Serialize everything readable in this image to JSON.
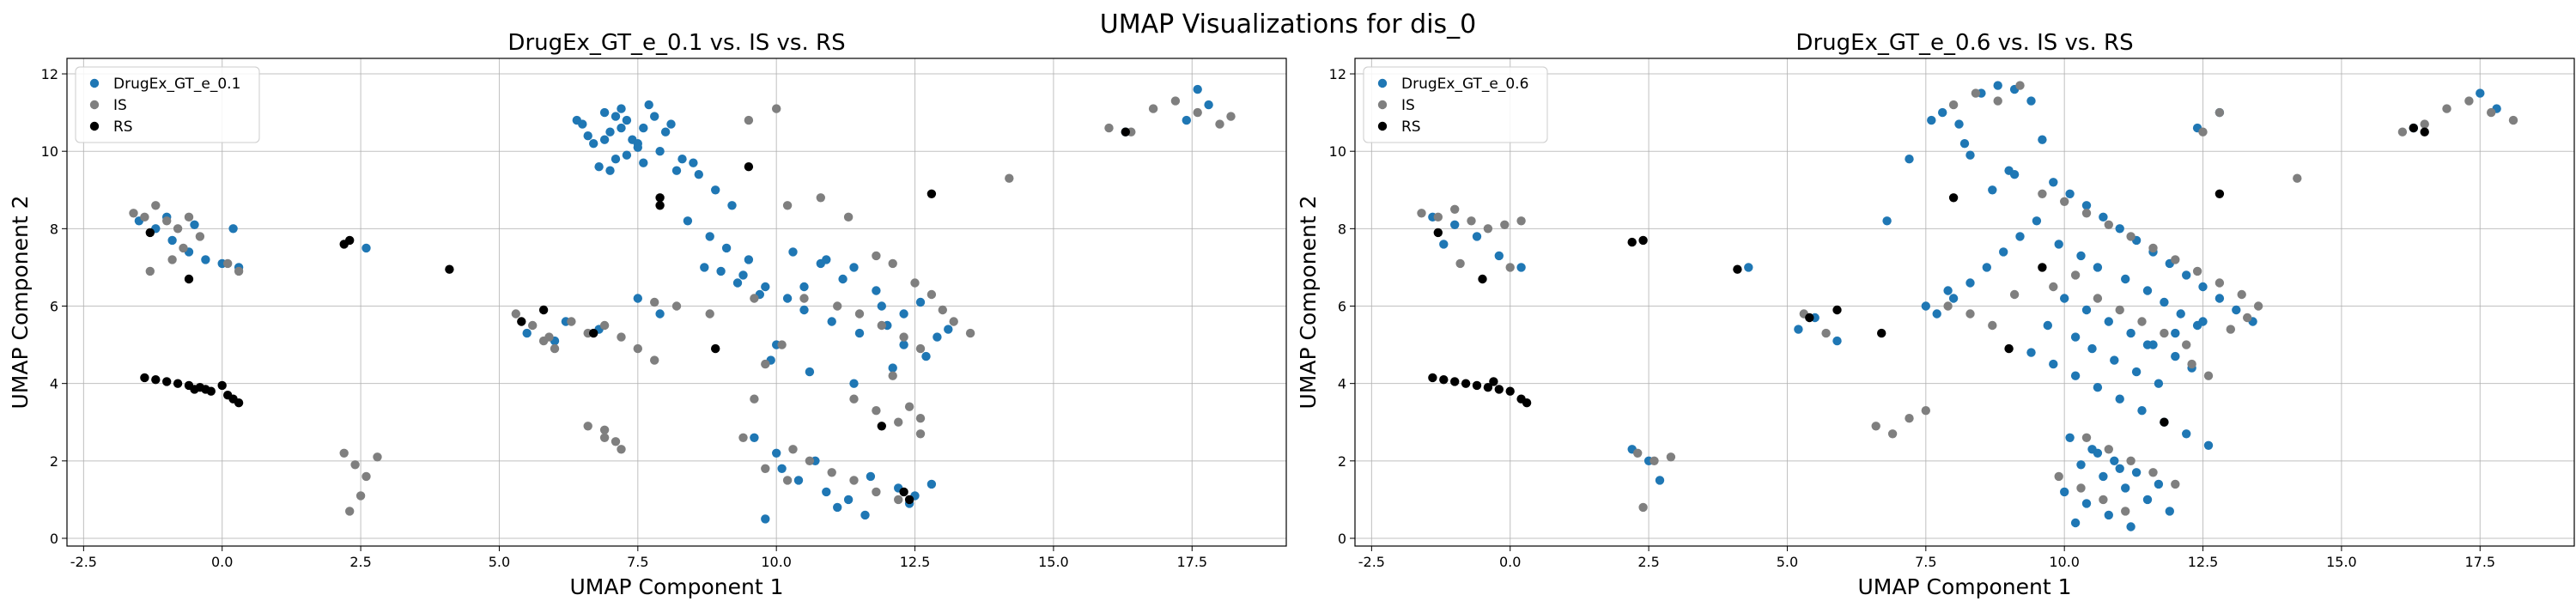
{
  "figure": {
    "suptitle": "UMAP Visualizations for dis_0"
  },
  "chart_data": [
    {
      "type": "scatter",
      "title": "DrugEx_GT_e_0.1 vs. IS vs. RS",
      "xlabel": "UMAP Component 1",
      "ylabel": "UMAP Component 2",
      "xlim": [
        -2.8,
        19.2
      ],
      "ylim": [
        -0.2,
        12.4
      ],
      "xticks": [
        -2.5,
        0.0,
        2.5,
        5.0,
        7.5,
        10.0,
        12.5,
        15.0,
        17.5
      ],
      "xtick_labels": [
        "-2.5",
        "0.0",
        "2.5",
        "5.0",
        "7.5",
        "10.0",
        "12.5",
        "15.0",
        "17.5"
      ],
      "yticks": [
        0,
        2,
        4,
        6,
        8,
        10,
        12
      ],
      "ytick_labels": [
        "0",
        "2",
        "4",
        "6",
        "8",
        "10",
        "12"
      ],
      "grid": true,
      "legend": "top-left",
      "series": [
        {
          "name": "DrugEx_GT_e_0.1",
          "color": "#1f77b4",
          "x": [
            7.0,
            7.3,
            6.7,
            7.6,
            6.9,
            7.4,
            6.5,
            7.8,
            7.1,
            6.8,
            7.5,
            7.2,
            6.6,
            8.0,
            7.9,
            7.0,
            6.4,
            7.7,
            8.1,
            7.3,
            7.6,
            6.9,
            7.2,
            7.5,
            7.1,
            8.3,
            8.6,
            8.9,
            9.2,
            8.4,
            8.8,
            9.1,
            9.5,
            9.0,
            9.3,
            9.7,
            8.7,
            9.4,
            9.8,
            10.2,
            10.5,
            11.0,
            11.5,
            12.0,
            12.3,
            12.6,
            12.9,
            11.8,
            11.2,
            10.8,
            10.3,
            10.0,
            9.9,
            10.6,
            11.4,
            12.1,
            12.7,
            13.1,
            10.1,
            10.4,
            10.9,
            11.3,
            11.7,
            12.2,
            12.5,
            12.8,
            10.7,
            11.1,
            11.6,
            12.4,
            9.6,
            10.0,
            10.5,
            10.9,
            11.4,
            11.9,
            12.3,
            8.2,
            8.5,
            6.2,
            6.8,
            5.5,
            6.0,
            7.5,
            7.9,
            -1.5,
            -1.2,
            -0.9,
            -0.6,
            -0.3,
            0.0,
            0.3,
            -1.0,
            -0.5,
            0.2,
            2.6,
            17.6,
            17.8,
            16.3,
            17.4,
            9.8
          ],
          "y": [
            10.5,
            10.8,
            10.2,
            10.6,
            11.0,
            10.3,
            10.7,
            10.9,
            9.8,
            9.6,
            10.1,
            11.1,
            10.4,
            10.5,
            10.0,
            9.5,
            10.8,
            11.2,
            10.7,
            9.9,
            9.7,
            10.3,
            10.6,
            10.2,
            10.9,
            9.8,
            9.4,
            9.0,
            8.6,
            8.2,
            7.8,
            7.5,
            7.2,
            6.9,
            6.6,
            6.3,
            7.0,
            6.8,
            6.5,
            6.2,
            5.9,
            5.6,
            5.3,
            5.5,
            5.8,
            6.1,
            5.2,
            6.4,
            6.7,
            7.1,
            7.4,
            5.0,
            4.6,
            4.3,
            4.0,
            4.4,
            4.7,
            5.4,
            1.8,
            1.5,
            1.2,
            1.0,
            1.6,
            1.3,
            1.1,
            1.4,
            2.0,
            0.8,
            0.6,
            0.9,
            2.6,
            2.2,
            6.5,
            7.2,
            7.0,
            6.0,
            5.0,
            9.5,
            9.7,
            5.6,
            5.4,
            5.3,
            5.1,
            6.2,
            5.8,
            8.2,
            8.0,
            7.7,
            7.4,
            7.2,
            7.1,
            7.0,
            8.3,
            8.1,
            8.0,
            7.5,
            11.6,
            11.2,
            10.5,
            10.8,
            0.5
          ]
        },
        {
          "name": "IS",
          "color": "#7f7f7f",
          "x": [
            -1.6,
            -1.4,
            -1.2,
            -1.0,
            -0.8,
            -0.6,
            -0.4,
            -1.3,
            -0.9,
            0.1,
            0.3,
            -0.7,
            2.2,
            2.4,
            2.6,
            2.8,
            2.3,
            2.5,
            5.3,
            5.6,
            5.9,
            6.3,
            6.6,
            6.9,
            7.2,
            7.5,
            7.8,
            6.6,
            6.9,
            7.2,
            9.5,
            10.0,
            10.2,
            10.8,
            11.3,
            11.8,
            12.1,
            12.5,
            12.8,
            13.0,
            13.2,
            13.5,
            11.5,
            11.9,
            12.3,
            12.6,
            11.1,
            10.5,
            10.1,
            9.8,
            10.3,
            10.6,
            11.0,
            11.4,
            11.8,
            12.2,
            9.8,
            10.2,
            9.6,
            9.4,
            11.4,
            11.8,
            12.2,
            12.6,
            12.1,
            14.2,
            16.0,
            16.4,
            16.8,
            17.2,
            17.6,
            18.0,
            18.2,
            7.8,
            8.2,
            8.8,
            9.6,
            6.9,
            7.1,
            5.8,
            6.0,
            12.4,
            12.6
          ],
          "y": [
            8.4,
            8.3,
            8.6,
            8.2,
            8.0,
            8.3,
            7.8,
            6.9,
            7.2,
            7.1,
            6.9,
            7.5,
            2.2,
            1.9,
            1.6,
            2.1,
            0.7,
            1.1,
            5.8,
            5.5,
            5.2,
            5.6,
            5.3,
            5.5,
            5.2,
            4.9,
            4.6,
            2.9,
            2.6,
            2.3,
            10.8,
            11.1,
            8.6,
            8.8,
            8.3,
            7.3,
            7.1,
            6.6,
            6.3,
            5.9,
            5.6,
            5.3,
            5.8,
            5.5,
            5.2,
            4.9,
            6.0,
            6.2,
            5.0,
            4.5,
            2.3,
            2.0,
            1.7,
            1.5,
            1.2,
            1.0,
            1.8,
            1.5,
            3.6,
            2.6,
            3.6,
            3.3,
            3.0,
            2.7,
            4.2,
            9.3,
            10.6,
            10.5,
            11.1,
            11.3,
            11.0,
            10.7,
            10.9,
            6.1,
            6.0,
            5.8,
            6.2,
            2.8,
            2.5,
            5.1,
            4.9,
            3.4,
            3.1
          ]
        },
        {
          "name": "RS",
          "color": "#000000",
          "x": [
            -1.4,
            -1.2,
            -1.0,
            -0.8,
            -0.6,
            -0.4,
            -0.3,
            -0.2,
            0.0,
            0.1,
            0.2,
            0.3,
            -0.5,
            -1.3,
            -0.6,
            2.2,
            2.3,
            4.1,
            5.8,
            5.4,
            6.7,
            7.9,
            7.9,
            8.9,
            9.5,
            12.8,
            12.3,
            12.4,
            11.9,
            16.3
          ],
          "y": [
            4.15,
            4.1,
            4.05,
            4.0,
            3.95,
            3.9,
            3.85,
            3.8,
            3.95,
            3.7,
            3.6,
            3.5,
            3.85,
            7.9,
            6.7,
            7.6,
            7.7,
            6.95,
            5.9,
            5.6,
            5.3,
            8.8,
            8.6,
            4.9,
            9.6,
            8.9,
            1.2,
            1.0,
            2.9,
            10.5
          ]
        }
      ]
    },
    {
      "type": "scatter",
      "title": "DrugEx_GT_e_0.6 vs. IS vs. RS",
      "xlabel": "UMAP Component 1",
      "ylabel": "UMAP Component 2",
      "xlim": [
        -2.8,
        19.2
      ],
      "ylim": [
        -0.2,
        12.4
      ],
      "xticks": [
        -2.5,
        0.0,
        2.5,
        5.0,
        7.5,
        10.0,
        12.5,
        15.0,
        17.5
      ],
      "xtick_labels": [
        "-2.5",
        "0.0",
        "2.5",
        "5.0",
        "7.5",
        "10.0",
        "12.5",
        "15.0",
        "17.5"
      ],
      "yticks": [
        0,
        2,
        4,
        6,
        8,
        10,
        12
      ],
      "ytick_labels": [
        "0",
        "2",
        "4",
        "6",
        "8",
        "10",
        "12"
      ],
      "grid": true,
      "legend": "top-left",
      "series": [
        {
          "name": "DrugEx_GT_e_0.6",
          "color": "#1f77b4",
          "x": [
            8.5,
            8.8,
            9.1,
            9.4,
            7.8,
            8.1,
            9.6,
            8.3,
            9.0,
            9.8,
            10.1,
            10.4,
            10.7,
            11.0,
            11.3,
            11.6,
            11.9,
            12.2,
            12.5,
            12.8,
            13.1,
            13.4,
            9.5,
            9.2,
            8.9,
            8.6,
            8.3,
            8.0,
            7.7,
            9.9,
            10.3,
            10.6,
            11.1,
            11.5,
            11.8,
            12.1,
            12.4,
            10.0,
            10.4,
            10.8,
            11.2,
            11.6,
            12.0,
            9.7,
            10.2,
            10.5,
            10.9,
            11.3,
            11.7,
            12.3,
            9.4,
            9.8,
            10.2,
            10.6,
            11.0,
            11.4,
            11.8,
            12.2,
            12.6,
            10.1,
            10.5,
            10.9,
            11.3,
            11.7,
            10.3,
            10.7,
            11.1,
            11.5,
            11.9,
            10.0,
            10.4,
            10.8,
            11.2,
            10.6,
            11.0,
            10.2,
            8.7,
            9.1,
            8.2,
            7.6,
            7.2,
            6.8,
            5.5,
            5.2,
            5.9,
            7.5,
            7.9,
            11.5,
            12.0,
            12.5,
            -1.4,
            -1.0,
            -0.6,
            -0.2,
            0.2,
            -1.2,
            2.2,
            2.5,
            2.7,
            4.3,
            16.3,
            17.5,
            17.8,
            12.4,
            12.8
          ],
          "y": [
            11.5,
            11.7,
            11.6,
            11.3,
            11.0,
            10.7,
            10.3,
            9.9,
            9.5,
            9.2,
            8.9,
            8.6,
            8.3,
            8.0,
            7.7,
            7.4,
            7.1,
            6.8,
            6.5,
            6.2,
            5.9,
            5.6,
            8.2,
            7.8,
            7.4,
            7.0,
            6.6,
            6.2,
            5.8,
            7.6,
            7.3,
            7.0,
            6.7,
            6.4,
            6.1,
            5.8,
            5.5,
            6.2,
            5.9,
            5.6,
            5.3,
            5.0,
            4.7,
            5.5,
            5.2,
            4.9,
            4.6,
            4.3,
            4.0,
            4.4,
            4.8,
            4.5,
            4.2,
            3.9,
            3.6,
            3.3,
            3.0,
            2.7,
            2.4,
            2.6,
            2.3,
            2.0,
            1.7,
            1.4,
            1.9,
            1.6,
            1.3,
            1.0,
            0.7,
            1.2,
            0.9,
            0.6,
            0.3,
            2.2,
            1.8,
            0.4,
            9.0,
            9.4,
            10.2,
            10.8,
            9.8,
            8.2,
            5.7,
            5.4,
            5.1,
            6.0,
            6.4,
            5.0,
            5.3,
            5.6,
            8.3,
            8.1,
            7.8,
            7.3,
            7.0,
            7.6,
            2.3,
            2.0,
            1.5,
            7.0,
            10.6,
            11.5,
            11.1,
            10.6,
            11.0
          ]
        },
        {
          "name": "IS",
          "color": "#7f7f7f",
          "x": [
            -1.6,
            -1.3,
            -1.0,
            -0.7,
            -0.4,
            -0.1,
            0.2,
            -0.9,
            0.0,
            2.3,
            2.6,
            2.9,
            2.4,
            5.3,
            5.7,
            6.6,
            6.9,
            7.2,
            7.5,
            8.0,
            8.4,
            8.8,
            9.2,
            9.6,
            10.0,
            10.4,
            10.8,
            11.2,
            11.6,
            12.0,
            12.4,
            12.8,
            13.2,
            13.5,
            9.8,
            10.2,
            10.6,
            11.0,
            11.4,
            11.8,
            12.2,
            10.4,
            10.8,
            11.2,
            11.6,
            12.0,
            9.9,
            10.3,
            10.7,
            11.1,
            12.5,
            12.8,
            14.2,
            16.1,
            16.5,
            16.9,
            17.3,
            17.7,
            18.1,
            7.9,
            8.3,
            8.7,
            9.1,
            12.3,
            12.6,
            13.0,
            13.3
          ],
          "y": [
            8.4,
            8.3,
            8.5,
            8.2,
            8.0,
            8.1,
            8.2,
            7.1,
            7.0,
            2.2,
            2.0,
            2.1,
            0.8,
            5.8,
            5.3,
            2.9,
            2.7,
            3.1,
            3.3,
            11.2,
            11.5,
            11.3,
            11.7,
            8.9,
            8.7,
            8.4,
            8.1,
            7.8,
            7.5,
            7.2,
            6.9,
            6.6,
            6.3,
            6.0,
            6.5,
            6.8,
            6.2,
            5.9,
            5.6,
            5.3,
            5.0,
            2.6,
            2.3,
            2.0,
            1.7,
            1.4,
            1.6,
            1.3,
            1.0,
            0.7,
            10.5,
            11.0,
            9.3,
            10.5,
            10.7,
            11.1,
            11.3,
            11.0,
            10.8,
            6.0,
            5.8,
            5.5,
            6.3,
            4.5,
            4.2,
            5.4,
            5.7
          ]
        },
        {
          "name": "RS",
          "color": "#000000",
          "x": [
            -1.4,
            -1.2,
            -1.0,
            -0.8,
            -0.6,
            -0.4,
            -0.2,
            0.0,
            0.2,
            0.3,
            -0.3,
            -1.3,
            -0.5,
            2.2,
            2.4,
            4.1,
            5.4,
            5.9,
            6.7,
            8.0,
            9.0,
            9.6,
            12.8,
            11.8,
            16.3,
            16.5
          ],
          "y": [
            4.15,
            4.1,
            4.05,
            4.0,
            3.95,
            3.9,
            3.85,
            3.8,
            3.6,
            3.5,
            4.05,
            7.9,
            6.7,
            7.65,
            7.7,
            6.95,
            5.7,
            5.9,
            5.3,
            8.8,
            4.9,
            7.0,
            8.9,
            3.0,
            10.6,
            10.5
          ]
        }
      ]
    }
  ]
}
